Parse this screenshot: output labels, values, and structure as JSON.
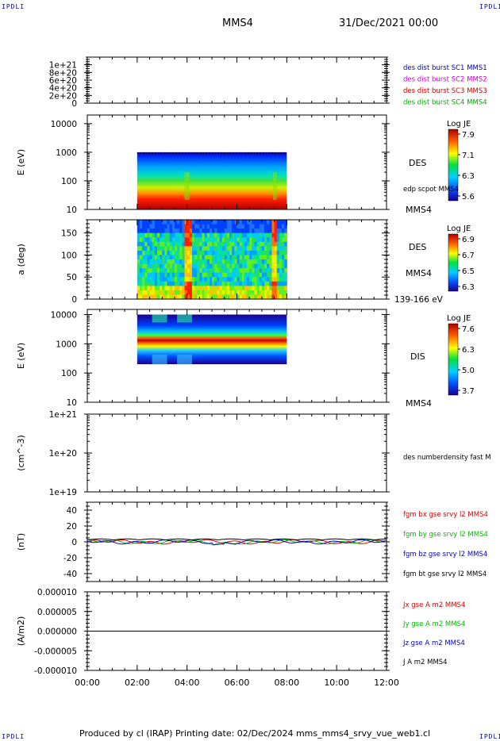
{
  "header": {
    "corner_label": "IPDLI",
    "spacecraft": "MMS4",
    "datetime": "31/Dec/2021 00:00"
  },
  "footer": {
    "text": "Produced by cl (IRAP)   Printing date: 02/Dec/2024   mms_mms4_srvy_vue_web1.cl"
  },
  "colors": {
    "mms1": "#0000cc",
    "mms2": "#cc00cc",
    "mms3": "#cc0000",
    "mms4": "#00aa00",
    "bx": "#dd0000",
    "by": "#00bb00",
    "bz": "#0000cc",
    "bt": "#000000"
  },
  "chart_data": [
    {
      "type": "line",
      "panel": "burst-flags",
      "ylim": [
        0,
        1.2e+21
      ],
      "ytick_labels": [
        "1e+21",
        "8e+20",
        "6e+20",
        "4e+20",
        "2e+20",
        "0"
      ],
      "ytick_values": [
        1e+21,
        8e+20,
        6e+20,
        4e+20,
        2e+20,
        0
      ],
      "series": [
        {
          "name": "des dist burst SC1 MMS1",
          "color": "#0000cc"
        },
        {
          "name": "des dist burst SC2 MMS2",
          "color": "#cc00cc"
        },
        {
          "name": "des dist burst SC3 MMS3",
          "color": "#cc0000"
        },
        {
          "name": "des dist burst SC4 MMS4",
          "color": "#00aa00"
        }
      ]
    },
    {
      "type": "heatmap",
      "panel": "des-energy",
      "ylabel": "E (eV)",
      "yscale": "log",
      "ylim": [
        10,
        20000
      ],
      "ytick_labels": [
        "10000",
        "1000",
        "100",
        "10"
      ],
      "ytick_values": [
        10000,
        1000,
        100,
        10
      ],
      "data_x_range": [
        2,
        8
      ],
      "data_y_range": [
        10,
        1000
      ],
      "right_labels": [
        "DES",
        "edp scpot MMS4",
        "MMS4"
      ],
      "colorbar": {
        "title": "Log JE",
        "ticks": [
          "7.9",
          "7.1",
          "6.3",
          "5.6"
        ]
      }
    },
    {
      "type": "heatmap",
      "panel": "des-pitch-angle",
      "ylabel": "a (deg)",
      "ylim": [
        0,
        180
      ],
      "ytick_labels": [
        "150",
        "100",
        "50",
        "0"
      ],
      "ytick_values": [
        150,
        100,
        50,
        0
      ],
      "data_x_range": [
        2,
        8
      ],
      "right_labels": [
        "DES",
        "MMS4",
        "139-166 eV"
      ],
      "colorbar": {
        "title": "Log JE",
        "ticks": [
          "6.9",
          "6.7",
          "6.5",
          "6.3"
        ]
      }
    },
    {
      "type": "heatmap",
      "panel": "dis-energy",
      "ylabel": "E (eV)",
      "yscale": "log",
      "ylim": [
        10,
        15000
      ],
      "ytick_labels": [
        "10000",
        "1000",
        "100",
        "10"
      ],
      "ytick_values": [
        10000,
        1000,
        100,
        10
      ],
      "data_x_range": [
        2,
        8
      ],
      "data_y_range": [
        200,
        10000
      ],
      "right_labels": [
        "DIS",
        "MMS4"
      ],
      "colorbar": {
        "title": "Log JE",
        "ticks": [
          "7.6",
          "6.3",
          "5.0",
          "3.7"
        ]
      }
    },
    {
      "type": "line",
      "panel": "density",
      "ylabel": "(cm^-3)",
      "yscale": "log",
      "ylim": [
        1e+19,
        1e+21
      ],
      "ytick_labels": [
        "1e+21",
        "1e+20",
        "1e+19"
      ],
      "ytick_values": [
        1e+21,
        1e+20,
        1e+19
      ],
      "series": [
        {
          "name": "des numberdensity fast M",
          "color": "#000000"
        }
      ]
    },
    {
      "type": "line",
      "panel": "magnetic-field",
      "ylabel": "(nT)",
      "ylim": [
        -50,
        50
      ],
      "ytick_labels": [
        "40",
        "20",
        "0",
        "-20",
        "-40"
      ],
      "ytick_values": [
        40,
        20,
        0,
        -20,
        -40
      ],
      "series": [
        {
          "name": "fgm bx gse srvy l2 MMS4",
          "color": "#dd0000"
        },
        {
          "name": "fgm by gse srvy l2 MMS4",
          "color": "#00bb00"
        },
        {
          "name": "fgm bz gse srvy l2 MMS4",
          "color": "#0000cc"
        },
        {
          "name": "fgm bt gse srvy l2 MMS4",
          "color": "#000000"
        }
      ]
    },
    {
      "type": "line",
      "panel": "current",
      "ylabel": "(A/m2)",
      "ylim": [
        -1e-05,
        1e-05
      ],
      "ytick_labels": [
        "0.000010",
        "0.000005",
        "0.000000",
        "-0.000005",
        "-0.000010"
      ],
      "ytick_values": [
        1e-05,
        5e-06,
        0,
        -5e-06,
        -1e-05
      ],
      "series": [
        {
          "name": "Jx gse A m2 MMS4",
          "color": "#dd0000"
        },
        {
          "name": "Jy gse A m2 MMS4",
          "color": "#00bb00"
        },
        {
          "name": "Jz gse A m2 MMS4",
          "color": "#0000cc"
        },
        {
          "name": "J A m2 MMS4",
          "color": "#000000"
        }
      ]
    }
  ],
  "x_axis": {
    "range_hours": [
      0,
      12
    ],
    "tick_labels": [
      "00:00",
      "02:00",
      "04:00",
      "06:00",
      "08:00",
      "10:00",
      "12:00"
    ],
    "tick_values": [
      0,
      2,
      4,
      6,
      8,
      10,
      12
    ]
  }
}
